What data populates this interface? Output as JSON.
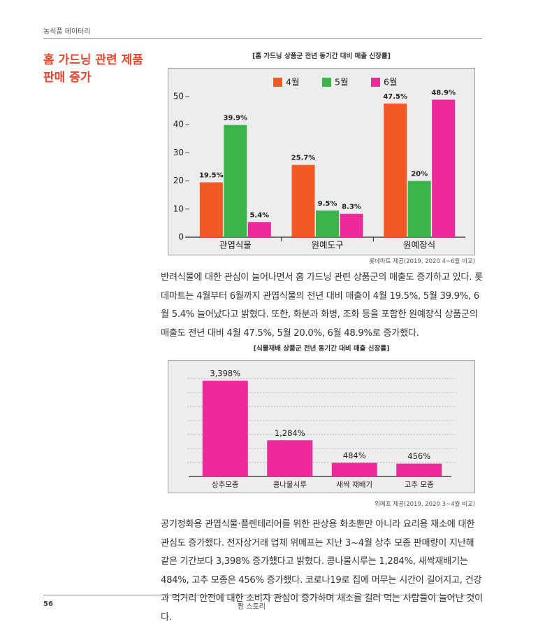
{
  "header": {
    "section": "농식품 데이터리"
  },
  "heading": [
    "홈 가드닝 관련 제품",
    "판매 증가"
  ],
  "chart_data": [
    {
      "type": "bar",
      "title": "[홈 가드닝 상품군 전년 동기간 대비 매출 신장률]",
      "categories": [
        "관엽식물",
        "원예도구",
        "원예장식"
      ],
      "series": [
        {
          "name": "4월",
          "color": "#f15a24",
          "values": [
            19.5,
            25.7,
            47.5
          ],
          "value_labels": [
            "19.5%",
            "25.7%",
            "47.5%"
          ]
        },
        {
          "name": "5월",
          "color": "#3cb44b",
          "values": [
            39.9,
            9.5,
            20
          ],
          "value_labels": [
            "39.9%",
            "9.5%",
            "20%"
          ]
        },
        {
          "name": "6월",
          "color": "#ee2a9b",
          "values": [
            5.4,
            8.3,
            48.9
          ],
          "value_labels": [
            "5.4%",
            "8.3%",
            "48.9%"
          ]
        }
      ],
      "ylim": [
        0,
        50
      ],
      "yticks": [
        0,
        10,
        20,
        30,
        40,
        50
      ],
      "source": "롯데마트 제공(2019, 2020 4~6월 비교)"
    },
    {
      "type": "bar",
      "title": "[식물재배 상품군 전년 동기간 대비 매출 신장률]",
      "categories": [
        "상추모종",
        "콩나물시루",
        "새싹 재배기",
        "고추 모종"
      ],
      "values": [
        3398,
        1284,
        484,
        456
      ],
      "value_labels": [
        "3,398%",
        "1,284%",
        "484%",
        "456%"
      ],
      "color": "#ee2a9b",
      "ylim": [
        0,
        3600
      ],
      "source": "위메프 제공(2019, 2020 3~4월 비교)"
    }
  ],
  "paragraphs": [
    "반려식물에 대한 관심이 늘어나면서 홈 가드닝 관련 상품군의 매출도 증가하고 있다. 롯데마트는 4월부터 6월까지 관엽식물의 전년 대비 매출이 4월 19.5%, 5월 39.9%, 6월 5.4% 늘어났다고 밝혔다. 또한, 화분과 화병, 조화 등을 포함한 원예장식 상품군의 매출도 전년 대비 4월 47.5%, 5월 20.0%, 6월 48.9%로 증가했다.",
    "공기정화용 관엽식물·플렌테리어를 위한 관상용 화초뿐만 아니라 요리용 채소에 대한 관심도 증가했다. 전자상거래 업체 위메프는 지난 3~4월 상추 모종 판매량이 지난해 같은 기간보다 3,398% 증가했다고 밝혔다. 콩나물시루는 1,284%, 새싹재배기는 484%, 고추 모종은 456% 증가했다. 코로나19로 집에 머무는 시간이 길어지고, 건강과 먹거리 안전에 대한 소비자 관심이 증가하며 채소를 길러 먹는 사람들이 늘어난 것이다."
  ],
  "footer": {
    "page": "56",
    "magazine": "팜 스토리"
  }
}
